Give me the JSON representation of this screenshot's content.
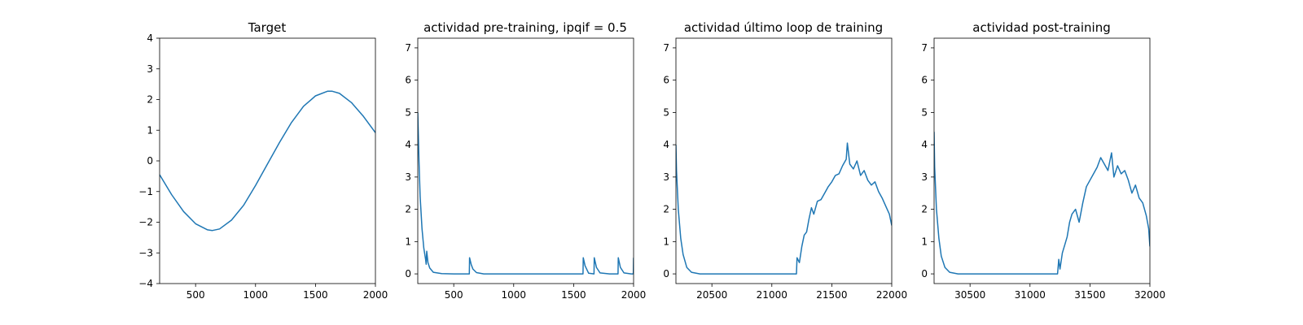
{
  "colors": {
    "line": "#1f77b4",
    "axes": "#000000",
    "background": "#ffffff"
  },
  "chart_data": [
    {
      "type": "line",
      "title": "Target",
      "xlim": [
        200,
        2000
      ],
      "ylim": [
        -4,
        4
      ],
      "xticks": [
        500,
        1000,
        1500,
        2000
      ],
      "yticks": [
        -4,
        -3,
        -2,
        -1,
        0,
        1,
        2,
        3,
        4
      ],
      "series": [
        {
          "x": [
            200,
            300,
            400,
            500,
            600,
            640,
            700,
            800,
            900,
            1000,
            1100,
            1200,
            1300,
            1400,
            1500,
            1600,
            1640,
            1700,
            1800,
            1900,
            2000
          ],
          "y": [
            -0.45,
            -1.1,
            -1.65,
            -2.05,
            -2.25,
            -2.27,
            -2.22,
            -1.93,
            -1.45,
            -0.8,
            -0.1,
            0.6,
            1.25,
            1.78,
            2.12,
            2.27,
            2.27,
            2.2,
            1.9,
            1.45,
            0.92
          ]
        }
      ]
    },
    {
      "type": "line",
      "title": "actividad pre-training, ipqif = 0.5",
      "xlim": [
        200,
        2000
      ],
      "ylim": [
        -0.3,
        7.3
      ],
      "xticks": [
        500,
        1000,
        1500,
        2000
      ],
      "yticks": [
        0,
        1,
        2,
        3,
        4,
        5,
        6,
        7
      ],
      "series": [
        {
          "x": [
            200,
            210,
            220,
            235,
            250,
            265,
            270,
            275,
            285,
            300,
            330,
            400,
            500,
            630,
            632,
            645,
            660,
            690,
            750,
            900,
            1200,
            1500,
            1578,
            1580,
            1595,
            1625,
            1670,
            1672,
            1690,
            1720,
            1800,
            1870,
            1872,
            1890,
            1920,
            1980,
            1998,
            2000
          ],
          "y": [
            5.0,
            3.5,
            2.4,
            1.4,
            0.8,
            0.45,
            0.3,
            0.7,
            0.35,
            0.18,
            0.05,
            0.01,
            0.0,
            0.0,
            0.5,
            0.3,
            0.15,
            0.04,
            0.0,
            0.0,
            0.0,
            0.0,
            0.0,
            0.5,
            0.25,
            0.02,
            0.0,
            0.5,
            0.2,
            0.03,
            0.0,
            0.0,
            0.5,
            0.2,
            0.03,
            0.0,
            0.0,
            0.5
          ]
        }
      ]
    },
    {
      "type": "line",
      "title": "actividad último loop de training",
      "xlim": [
        20200,
        22000
      ],
      "ylim": [
        -0.3,
        7.3
      ],
      "xticks": [
        20500,
        21000,
        21500,
        22000
      ],
      "yticks": [
        0,
        1,
        2,
        3,
        4,
        5,
        6,
        7
      ],
      "series": [
        {
          "x": [
            20200,
            20205,
            20220,
            20240,
            20260,
            20290,
            20330,
            20400,
            20600,
            20800,
            21000,
            21190,
            21205,
            21210,
            21230,
            21250,
            21270,
            21290,
            21310,
            21330,
            21350,
            21380,
            21410,
            21440,
            21470,
            21500,
            21530,
            21560,
            21590,
            21620,
            21630,
            21650,
            21680,
            21710,
            21740,
            21770,
            21800,
            21830,
            21860,
            21890,
            21920,
            21950,
            21980,
            22000
          ],
          "y": [
            4.0,
            3.2,
            2.0,
            1.1,
            0.6,
            0.2,
            0.05,
            0.0,
            0.0,
            0.0,
            0.0,
            0.0,
            0.0,
            0.5,
            0.35,
            0.85,
            1.2,
            1.3,
            1.7,
            2.05,
            1.85,
            2.25,
            2.3,
            2.5,
            2.7,
            2.85,
            3.05,
            3.1,
            3.35,
            3.55,
            4.05,
            3.4,
            3.25,
            3.5,
            3.05,
            3.2,
            2.9,
            2.75,
            2.85,
            2.55,
            2.35,
            2.1,
            1.85,
            1.5
          ]
        }
      ]
    },
    {
      "type": "line",
      "title": "actividad post-training",
      "xlim": [
        30200,
        32000
      ],
      "ylim": [
        -0.3,
        7.3
      ],
      "xticks": [
        30500,
        31000,
        31500,
        32000
      ],
      "yticks": [
        0,
        1,
        2,
        3,
        4,
        5,
        6,
        7
      ],
      "series": [
        {
          "x": [
            30200,
            30205,
            30220,
            30240,
            30260,
            30290,
            30330,
            30400,
            30600,
            30800,
            31000,
            31230,
            31240,
            31250,
            31270,
            31290,
            31310,
            31330,
            31350,
            31380,
            31410,
            31440,
            31470,
            31500,
            31530,
            31560,
            31590,
            31620,
            31650,
            31680,
            31700,
            31730,
            31760,
            31790,
            31820,
            31850,
            31880,
            31910,
            31940,
            31970,
            31990,
            32000
          ],
          "y": [
            4.4,
            3.3,
            2.0,
            1.1,
            0.55,
            0.2,
            0.05,
            0.0,
            0.0,
            0.0,
            0.0,
            0.0,
            0.45,
            0.15,
            0.65,
            0.9,
            1.15,
            1.6,
            1.85,
            2.0,
            1.6,
            2.2,
            2.7,
            2.9,
            3.1,
            3.3,
            3.6,
            3.4,
            3.2,
            3.75,
            3.0,
            3.35,
            3.1,
            3.2,
            2.9,
            2.5,
            2.75,
            2.35,
            2.2,
            1.8,
            1.4,
            0.85
          ]
        }
      ]
    }
  ]
}
